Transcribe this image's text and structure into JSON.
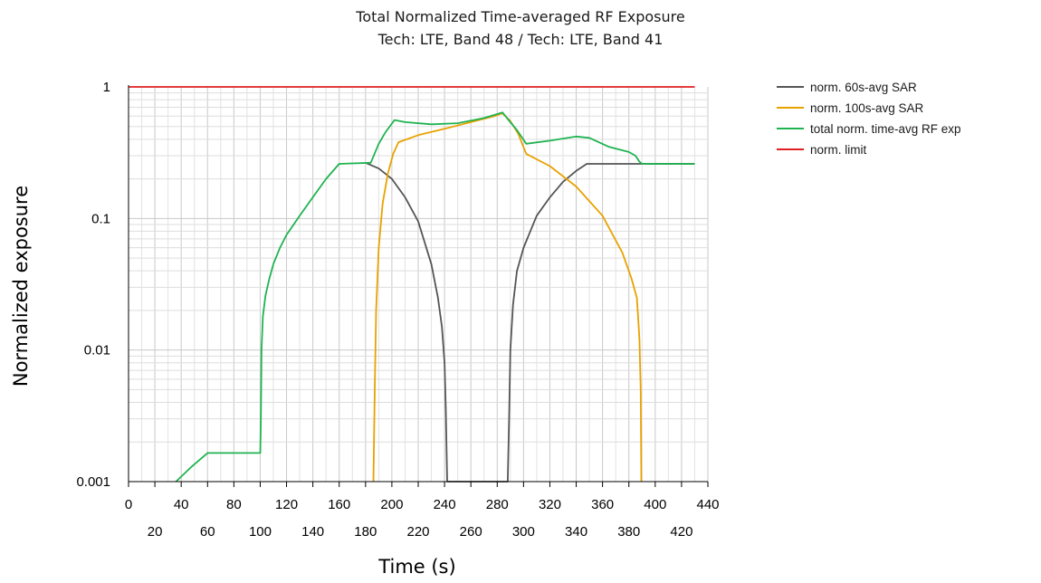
{
  "chart_data": {
    "type": "line",
    "title": "Total Normalized Time-averaged RF Exposure",
    "subtitle": "Tech: LTE, Band 48 / Tech: LTE, Band 41",
    "xlabel": "Time (s)",
    "ylabel": "Normalized exposure",
    "xlim": [
      0,
      440
    ],
    "ylim": [
      0.001,
      1
    ],
    "y_scale": "log",
    "grid": true,
    "legend_position": "right",
    "x_ticks_upper": [
      "0",
      "40",
      "80",
      "120",
      "160",
      "200",
      "240",
      "280",
      "320",
      "360",
      "400",
      "440"
    ],
    "x_ticks_lower": [
      "20",
      "60",
      "100",
      "140",
      "180",
      "220",
      "260",
      "300",
      "340",
      "380",
      "420"
    ],
    "y_ticks": [
      "0.001",
      "0.01",
      "0.1",
      "1"
    ],
    "series": [
      {
        "name": "norm. 60s-avg SAR",
        "color": "#555555",
        "points": [
          [
            180,
            0.265
          ],
          [
            190,
            0.24
          ],
          [
            200,
            0.2
          ],
          [
            210,
            0.145
          ],
          [
            220,
            0.095
          ],
          [
            230,
            0.045
          ],
          [
            235,
            0.025
          ],
          [
            238,
            0.015
          ],
          [
            240,
            0.008
          ],
          [
            241,
            0.0035
          ],
          [
            242,
            0.001
          ],
          [
            288,
            0.001
          ],
          [
            289,
            0.003
          ],
          [
            290,
            0.01
          ],
          [
            292,
            0.022
          ],
          [
            295,
            0.04
          ],
          [
            300,
            0.06
          ],
          [
            310,
            0.105
          ],
          [
            320,
            0.145
          ],
          [
            330,
            0.19
          ],
          [
            340,
            0.23
          ],
          [
            348,
            0.26
          ],
          [
            430,
            0.26
          ]
        ]
      },
      {
        "name": "norm. 100s-avg SAR",
        "color": "#E8A200",
        "points": [
          [
            186,
            0.001
          ],
          [
            187,
            0.005
          ],
          [
            188,
            0.02
          ],
          [
            190,
            0.06
          ],
          [
            193,
            0.13
          ],
          [
            197,
            0.22
          ],
          [
            201,
            0.31
          ],
          [
            205,
            0.38
          ],
          [
            220,
            0.43
          ],
          [
            240,
            0.48
          ],
          [
            260,
            0.54
          ],
          [
            278,
            0.6
          ],
          [
            284,
            0.63
          ],
          [
            290,
            0.55
          ],
          [
            296,
            0.44
          ],
          [
            302,
            0.31
          ],
          [
            320,
            0.25
          ],
          [
            340,
            0.175
          ],
          [
            360,
            0.105
          ],
          [
            375,
            0.055
          ],
          [
            382,
            0.035
          ],
          [
            386,
            0.025
          ],
          [
            387,
            0.018
          ],
          [
            388,
            0.012
          ],
          [
            389,
            0.005
          ],
          [
            389.5,
            0.001
          ]
        ]
      },
      {
        "name": "total norm. time-avg RF exp",
        "color": "#1FB350",
        "points": [
          [
            36,
            0.001
          ],
          [
            48,
            0.0013
          ],
          [
            60,
            0.00165
          ],
          [
            100,
            0.00165
          ],
          [
            100.5,
            0.003
          ],
          [
            101,
            0.01
          ],
          [
            102,
            0.018
          ],
          [
            104,
            0.026
          ],
          [
            107,
            0.035
          ],
          [
            110,
            0.045
          ],
          [
            115,
            0.06
          ],
          [
            120,
            0.075
          ],
          [
            130,
            0.105
          ],
          [
            140,
            0.145
          ],
          [
            150,
            0.2
          ],
          [
            160,
            0.26
          ],
          [
            184,
            0.265
          ],
          [
            190,
            0.37
          ],
          [
            195,
            0.45
          ],
          [
            202,
            0.56
          ],
          [
            210,
            0.54
          ],
          [
            230,
            0.52
          ],
          [
            250,
            0.53
          ],
          [
            270,
            0.58
          ],
          [
            284,
            0.64
          ],
          [
            288,
            0.57
          ],
          [
            295,
            0.47
          ],
          [
            302,
            0.37
          ],
          [
            320,
            0.39
          ],
          [
            340,
            0.42
          ],
          [
            350,
            0.41
          ],
          [
            365,
            0.35
          ],
          [
            380,
            0.32
          ],
          [
            385,
            0.3
          ],
          [
            388,
            0.27
          ],
          [
            390,
            0.26
          ],
          [
            430,
            0.26
          ]
        ]
      },
      {
        "name": "norm. limit",
        "color": "#E02020",
        "points": [
          [
            0,
            1
          ],
          [
            430,
            1
          ]
        ]
      }
    ]
  }
}
